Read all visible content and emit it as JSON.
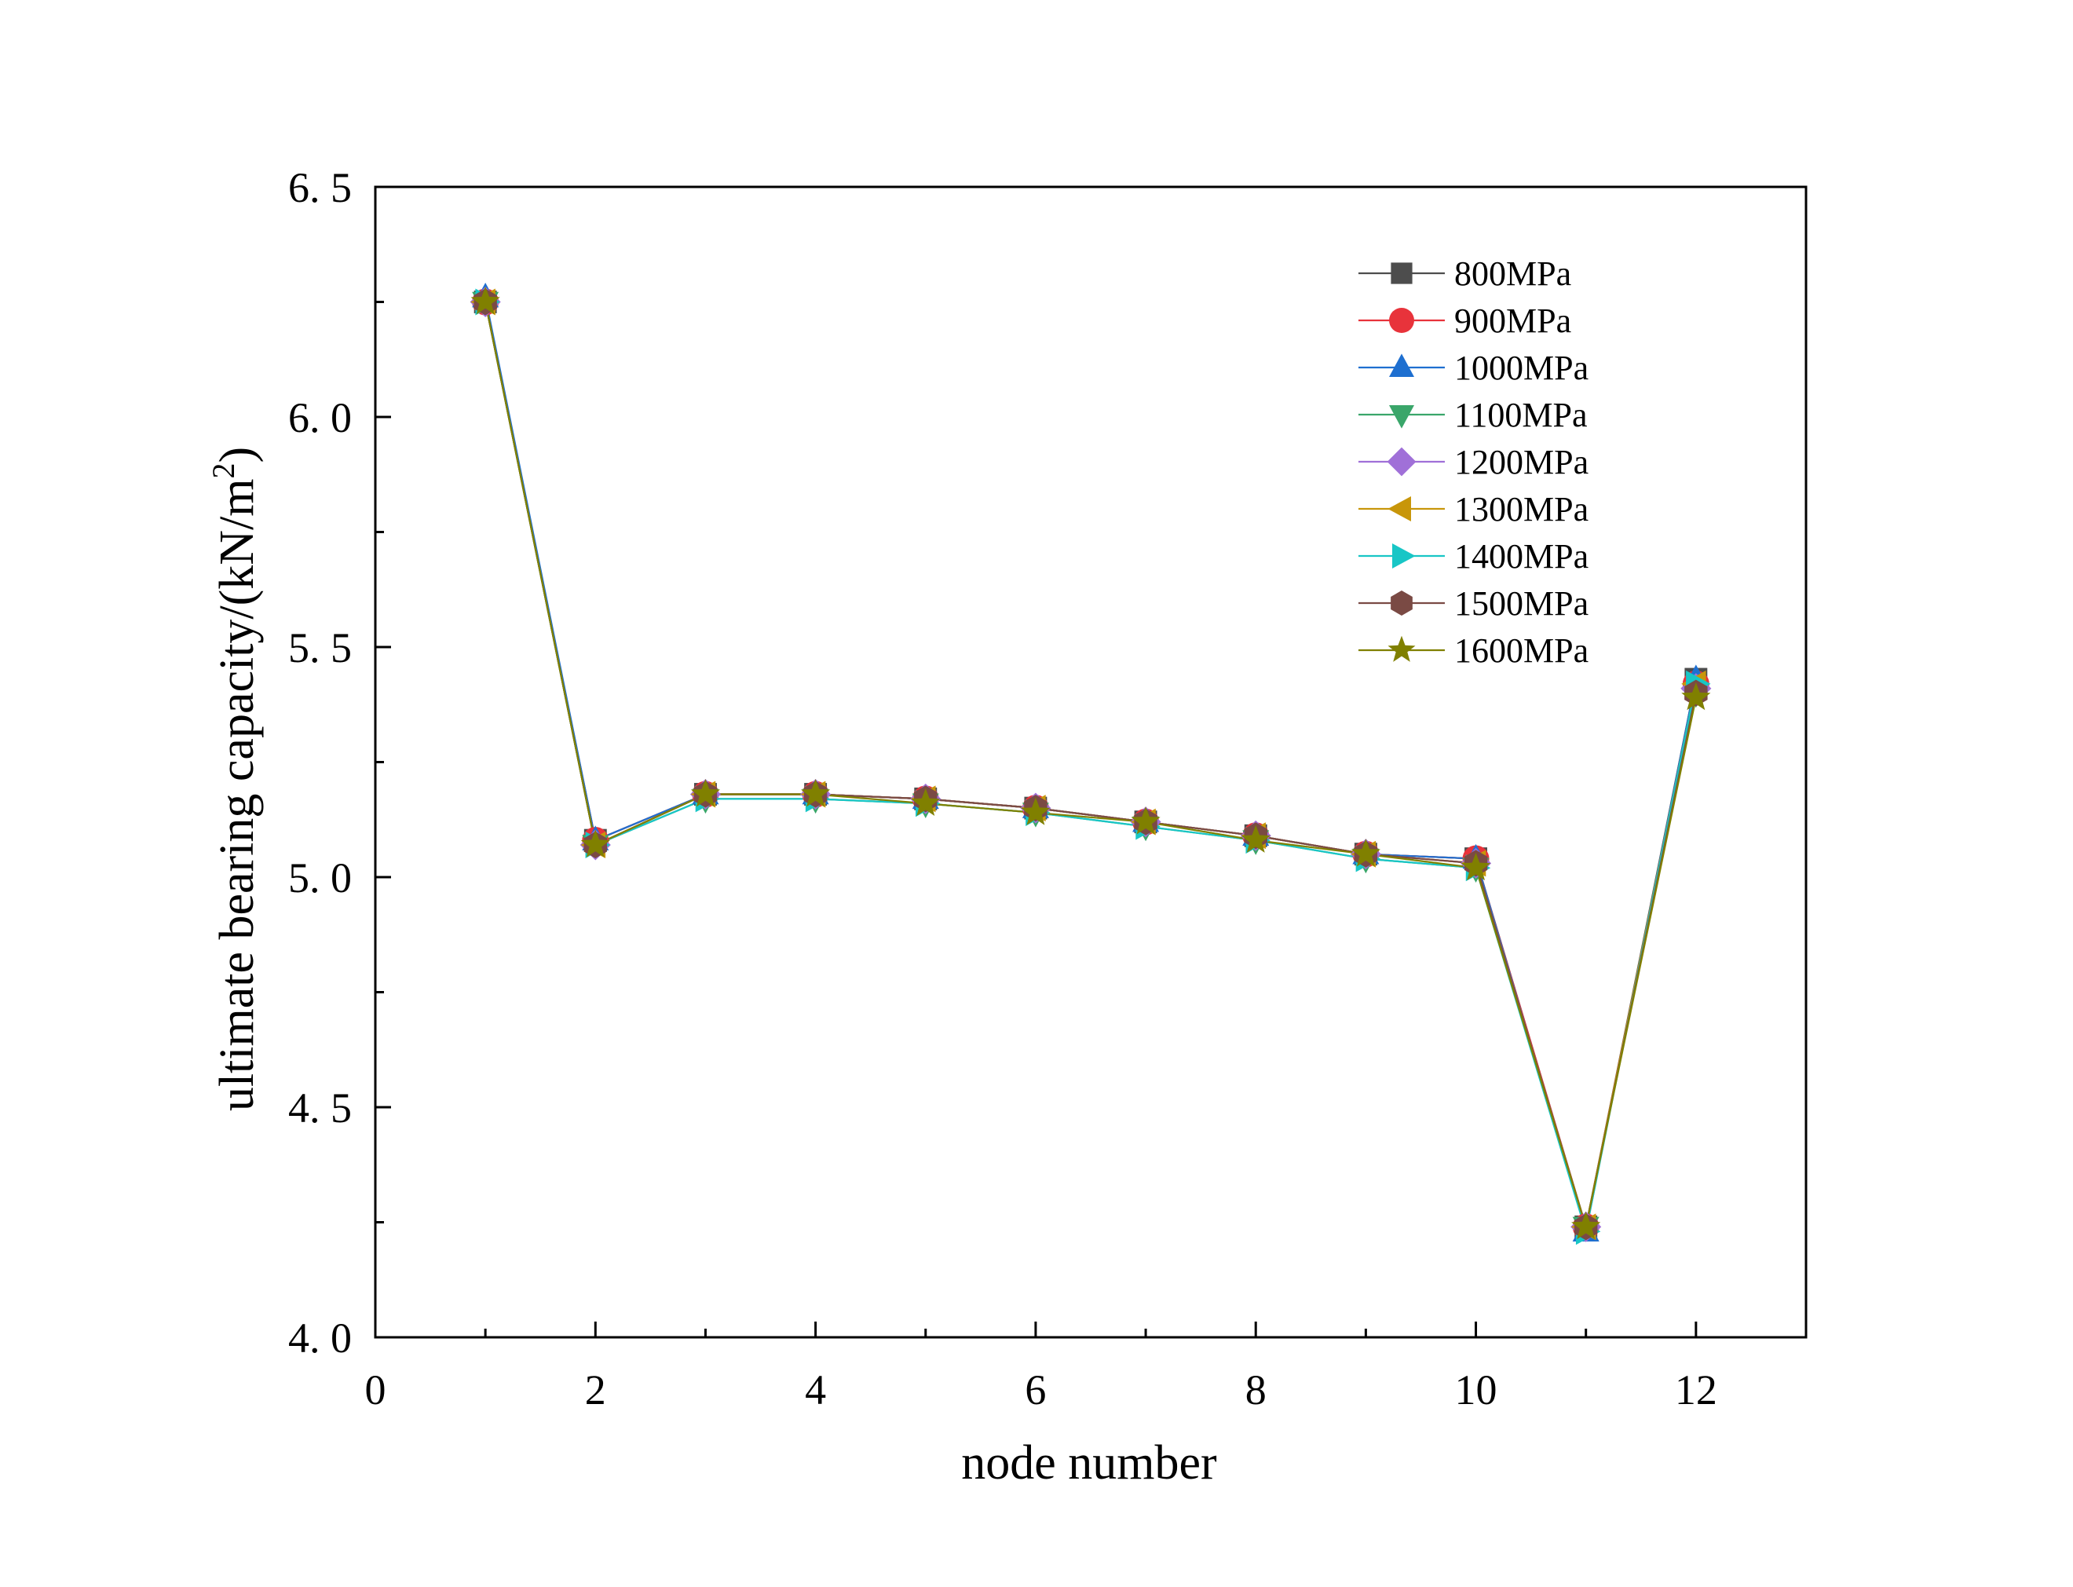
{
  "chart_data": {
    "type": "line",
    "title": "",
    "xlabel": "node number",
    "ylabel": "ultimate bearing capacity/(kN/m",
    "ylabel_sup": "2",
    "ylabel_close": ")",
    "xlim": [
      0,
      13
    ],
    "ylim": [
      4.0,
      6.5
    ],
    "xticks": [
      0,
      2,
      4,
      6,
      8,
      10,
      12
    ],
    "xtick_labels": [
      "0",
      "2",
      "4",
      "6",
      "8",
      "10",
      "12"
    ],
    "xminor": [
      1,
      3,
      5,
      7,
      9,
      11
    ],
    "yticks": [
      4.0,
      4.5,
      5.0,
      5.5,
      6.0,
      6.5
    ],
    "ytick_labels": [
      "4. 0",
      "4. 5",
      "5. 0",
      "5. 5",
      "6. 0",
      "6. 5"
    ],
    "yminor": [
      4.25,
      4.75,
      5.25,
      5.75,
      6.25
    ],
    "grid": false,
    "legend_position": "top-right",
    "x": [
      1,
      2,
      3,
      4,
      5,
      6,
      7,
      8,
      9,
      10,
      11,
      12
    ],
    "series": [
      {
        "name": "800MPa",
        "color": "#4d4d4d",
        "marker": "square",
        "values": [
          6.25,
          5.08,
          5.18,
          5.18,
          5.17,
          5.15,
          5.12,
          5.09,
          5.05,
          5.04,
          4.24,
          5.43
        ]
      },
      {
        "name": "900MPa",
        "color": "#e8333b",
        "marker": "circle",
        "values": [
          6.25,
          5.08,
          5.18,
          5.18,
          5.17,
          5.15,
          5.12,
          5.09,
          5.05,
          5.04,
          4.24,
          5.42
        ]
      },
      {
        "name": "1000MPa",
        "color": "#1e6fd0",
        "marker": "triangle-up",
        "values": [
          6.26,
          5.08,
          5.18,
          5.18,
          5.17,
          5.15,
          5.12,
          5.09,
          5.05,
          5.04,
          4.23,
          5.43
        ]
      },
      {
        "name": "1100MPa",
        "color": "#3aa66a",
        "marker": "triangle-down",
        "values": [
          6.25,
          5.07,
          5.17,
          5.17,
          5.16,
          5.14,
          5.11,
          5.08,
          5.04,
          5.02,
          4.24,
          5.4
        ]
      },
      {
        "name": "1200MPa",
        "color": "#a070d8",
        "marker": "diamond",
        "values": [
          6.25,
          5.07,
          5.18,
          5.18,
          5.17,
          5.15,
          5.12,
          5.09,
          5.05,
          5.03,
          4.24,
          5.41
        ]
      },
      {
        "name": "1300MPa",
        "color": "#c8960a",
        "marker": "triangle-left",
        "values": [
          6.25,
          5.07,
          5.18,
          5.18,
          5.17,
          5.15,
          5.12,
          5.09,
          5.05,
          5.03,
          4.24,
          5.42
        ]
      },
      {
        "name": "1400MPa",
        "color": "#18c6c6",
        "marker": "triangle-right",
        "values": [
          6.25,
          5.07,
          5.17,
          5.17,
          5.16,
          5.14,
          5.11,
          5.08,
          5.04,
          5.02,
          4.23,
          5.42
        ]
      },
      {
        "name": "1500MPa",
        "color": "#7a4a44",
        "marker": "hexagon",
        "values": [
          6.25,
          5.07,
          5.18,
          5.18,
          5.17,
          5.15,
          5.12,
          5.09,
          5.05,
          5.03,
          4.24,
          5.4
        ]
      },
      {
        "name": "1600MPa",
        "color": "#808000",
        "marker": "star",
        "values": [
          6.25,
          5.07,
          5.18,
          5.18,
          5.16,
          5.14,
          5.12,
          5.08,
          5.05,
          5.02,
          4.24,
          5.39
        ]
      }
    ]
  }
}
